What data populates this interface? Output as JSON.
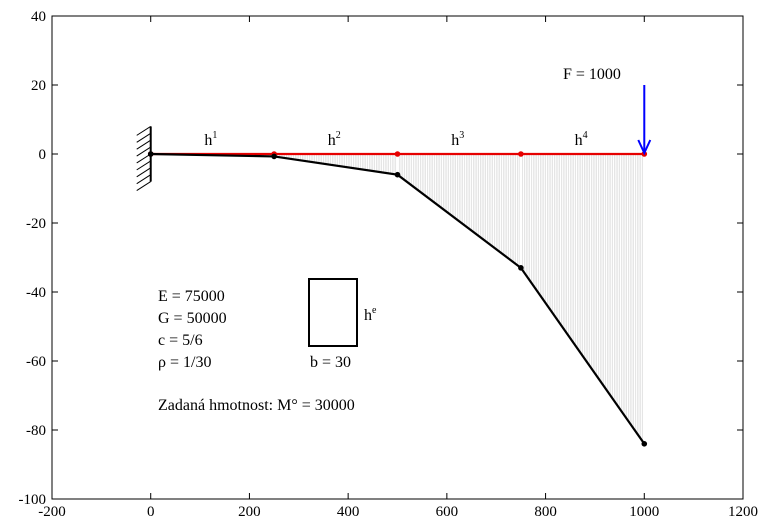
{
  "chart_data": {
    "type": "line",
    "xlim": [
      -200,
      1200
    ],
    "ylim": [
      -100,
      40
    ],
    "xticks": [
      -200,
      0,
      200,
      400,
      600,
      800,
      1000,
      1200
    ],
    "yticks": [
      -100,
      -80,
      -60,
      -40,
      -20,
      0,
      20,
      40
    ],
    "series": [
      {
        "role": "undeformed",
        "color": "#e60000",
        "x": [
          0,
          250,
          500,
          750,
          1000
        ],
        "y": [
          0,
          0,
          0,
          0,
          0
        ]
      },
      {
        "role": "deformed",
        "color": "#000000",
        "x": [
          0,
          250,
          500,
          750,
          1000
        ],
        "y": [
          0,
          -0.7,
          -6,
          -33,
          -84
        ]
      }
    ],
    "iterations_color": "#d4d4d4",
    "force": {
      "label": "F = 1000",
      "x": 1000,
      "y_from": 20,
      "y_to": 0,
      "color": "#0000ff"
    },
    "segment_labels": [
      {
        "base": "h",
        "sup": "1",
        "x": 125
      },
      {
        "base": "h",
        "sup": "2",
        "x": 375
      },
      {
        "base": "h",
        "sup": "3",
        "x": 625
      },
      {
        "base": "h",
        "sup": "4",
        "x": 875
      }
    ],
    "parameters": [
      "E = 75000",
      "G = 50000",
      "c = 5/6",
      "ρ = 1/30"
    ],
    "cross_section": {
      "height_base": "h",
      "height_sup": "e",
      "width_label": "b = 30"
    },
    "mass_label": "Zadaná hmotnost: M° = 30000"
  }
}
